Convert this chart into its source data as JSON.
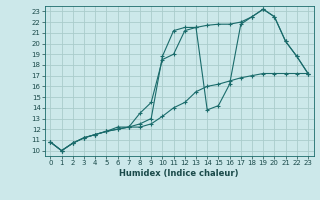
{
  "xlabel": "Humidex (Indice chaleur)",
  "background_color": "#cce8ea",
  "grid_color": "#aacccc",
  "line_color": "#1a6b6b",
  "xlim": [
    -0.5,
    23.5
  ],
  "ylim": [
    9.5,
    23.5
  ],
  "xticks": [
    0,
    1,
    2,
    3,
    4,
    5,
    6,
    7,
    8,
    9,
    10,
    11,
    12,
    13,
    14,
    15,
    16,
    17,
    18,
    19,
    20,
    21,
    22,
    23
  ],
  "yticks": [
    10,
    11,
    12,
    13,
    14,
    15,
    16,
    17,
    18,
    19,
    20,
    21,
    22,
    23
  ],
  "series1": [
    [
      0,
      10.8
    ],
    [
      1,
      10.0
    ],
    [
      2,
      10.7
    ],
    [
      3,
      11.2
    ],
    [
      4,
      11.5
    ],
    [
      5,
      11.8
    ],
    [
      6,
      12.2
    ],
    [
      7,
      12.2
    ],
    [
      8,
      12.5
    ],
    [
      9,
      13.0
    ],
    [
      10,
      18.8
    ],
    [
      11,
      21.2
    ],
    [
      12,
      21.5
    ],
    [
      13,
      21.5
    ],
    [
      14,
      21.7
    ],
    [
      15,
      21.8
    ],
    [
      16,
      21.8
    ],
    [
      17,
      22.0
    ],
    [
      18,
      22.5
    ],
    [
      19,
      23.2
    ],
    [
      20,
      22.5
    ],
    [
      21,
      20.2
    ],
    [
      22,
      18.8
    ],
    [
      23,
      17.2
    ]
  ],
  "series2": [
    [
      0,
      10.8
    ],
    [
      1,
      10.0
    ],
    [
      2,
      10.7
    ],
    [
      3,
      11.2
    ],
    [
      4,
      11.5
    ],
    [
      5,
      11.8
    ],
    [
      6,
      12.0
    ],
    [
      7,
      12.2
    ],
    [
      8,
      13.5
    ],
    [
      9,
      14.5
    ],
    [
      10,
      18.5
    ],
    [
      11,
      19.0
    ],
    [
      12,
      21.2
    ],
    [
      13,
      21.5
    ],
    [
      14,
      13.8
    ],
    [
      15,
      14.2
    ],
    [
      16,
      16.2
    ],
    [
      17,
      21.8
    ],
    [
      18,
      22.5
    ],
    [
      19,
      23.2
    ],
    [
      20,
      22.5
    ],
    [
      21,
      20.2
    ],
    [
      22,
      18.8
    ],
    [
      23,
      17.2
    ]
  ],
  "series3": [
    [
      0,
      10.8
    ],
    [
      1,
      10.0
    ],
    [
      2,
      10.7
    ],
    [
      3,
      11.2
    ],
    [
      4,
      11.5
    ],
    [
      5,
      11.8
    ],
    [
      6,
      12.0
    ],
    [
      7,
      12.2
    ],
    [
      8,
      12.2
    ],
    [
      9,
      12.5
    ],
    [
      10,
      13.2
    ],
    [
      11,
      14.0
    ],
    [
      12,
      14.5
    ],
    [
      13,
      15.5
    ],
    [
      14,
      16.0
    ],
    [
      15,
      16.2
    ],
    [
      16,
      16.5
    ],
    [
      17,
      16.8
    ],
    [
      18,
      17.0
    ],
    [
      19,
      17.2
    ],
    [
      20,
      17.2
    ],
    [
      21,
      17.2
    ],
    [
      22,
      17.2
    ],
    [
      23,
      17.2
    ]
  ]
}
